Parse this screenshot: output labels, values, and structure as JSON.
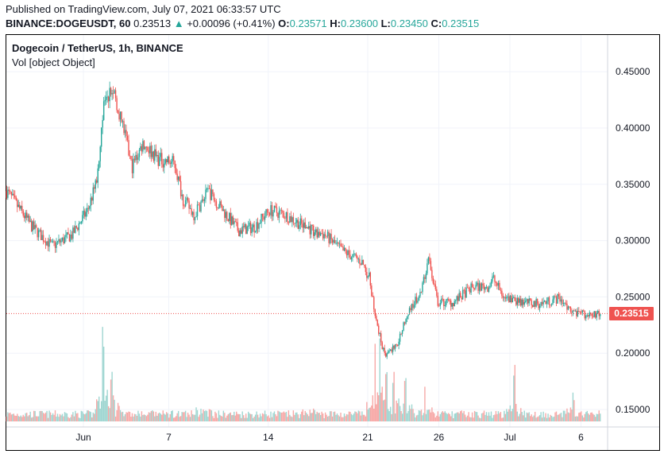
{
  "header": {
    "published": "Published on TradingView.com, July 07, 2021 06:33:57 UTC",
    "symbol": "BINANCE:DOGEUSDT, 60",
    "price": "0.23513",
    "arrow": "▲",
    "change": "+0.00096 (+0.41%)",
    "o_label": "O:",
    "o": "0.23571",
    "h_label": "H:",
    "h": "0.23600",
    "l_label": "L:",
    "l": "0.23450",
    "c_label": "C:",
    "c": "0.23515"
  },
  "legend": {
    "title": "Dogecoin / TetherUS, 1h, BINANCE",
    "volume": "Vol [object Object]"
  },
  "last_price_label": "0.23515",
  "colors": {
    "up": "#26a69a",
    "down": "#ef5350",
    "grid": "#f0f3fa",
    "up_vol": "#9fd6d1",
    "down_vol": "#f7a9a7"
  },
  "chart_data": {
    "type": "candlestick",
    "title": "Dogecoin / TetherUS, 1h, BINANCE",
    "x_unit": "days since Jun 1, 2021",
    "xlim": [
      -5.42,
      36.87
    ],
    "ylim": [
      0.1375,
      0.475
    ],
    "y_ticks": [
      "0.45000",
      "0.40000",
      "0.35000",
      "0.30000",
      "0.25000",
      "0.20000",
      "0.15000"
    ],
    "y_tick_values": [
      0.45,
      0.4,
      0.35,
      0.3,
      0.25,
      0.2,
      0.15
    ],
    "x_ticks": [
      {
        "label": "Jun",
        "day": 0
      },
      {
        "label": "7",
        "day": 6
      },
      {
        "label": "14",
        "day": 13
      },
      {
        "label": "21",
        "day": 20
      },
      {
        "label": "26",
        "day": 25
      },
      {
        "label": "Jul",
        "day": 30
      },
      {
        "label": "6",
        "day": 35
      }
    ],
    "last_price": 0.23515,
    "price_path": [
      [
        -5.4,
        0.344
      ],
      [
        -3.6,
        0.312
      ],
      [
        -2.2,
        0.295
      ],
      [
        -0.8,
        0.305
      ],
      [
        0.3,
        0.327
      ],
      [
        0.9,
        0.351
      ],
      [
        1.5,
        0.429
      ],
      [
        2.2,
        0.429
      ],
      [
        2.8,
        0.401
      ],
      [
        3.4,
        0.365
      ],
      [
        4.2,
        0.387
      ],
      [
        5.3,
        0.372
      ],
      [
        6.4,
        0.369
      ],
      [
        7.0,
        0.337
      ],
      [
        7.8,
        0.323
      ],
      [
        8.8,
        0.344
      ],
      [
        9.8,
        0.327
      ],
      [
        10.9,
        0.309
      ],
      [
        12.0,
        0.312
      ],
      [
        13.1,
        0.327
      ],
      [
        14.2,
        0.323
      ],
      [
        15.6,
        0.312
      ],
      [
        17.0,
        0.305
      ],
      [
        18.2,
        0.291
      ],
      [
        19.6,
        0.281
      ],
      [
        20.1,
        0.267
      ],
      [
        20.7,
        0.224
      ],
      [
        21.2,
        0.196
      ],
      [
        22.1,
        0.21
      ],
      [
        22.9,
        0.238
      ],
      [
        23.7,
        0.252
      ],
      [
        24.3,
        0.284
      ],
      [
        24.9,
        0.245
      ],
      [
        26.0,
        0.245
      ],
      [
        27.4,
        0.259
      ],
      [
        28.5,
        0.259
      ],
      [
        28.8,
        0.267
      ],
      [
        29.6,
        0.249
      ],
      [
        30.7,
        0.245
      ],
      [
        32.1,
        0.244
      ],
      [
        33.5,
        0.249
      ],
      [
        34.5,
        0.235
      ],
      [
        35.5,
        0.235
      ],
      [
        36.4,
        0.235
      ]
    ],
    "volume_spikes": [
      [
        1.4,
        1.0
      ],
      [
        1.6,
        0.9
      ],
      [
        2.0,
        0.7
      ],
      [
        20.5,
        0.8
      ],
      [
        20.9,
        0.9
      ],
      [
        21.3,
        0.75
      ],
      [
        21.8,
        0.6
      ],
      [
        22.6,
        0.5
      ],
      [
        24.0,
        0.4
      ],
      [
        30.3,
        0.75
      ],
      [
        34.5,
        0.35
      ],
      [
        8.5,
        0.35
      ],
      [
        16.0,
        0.3
      ]
    ]
  }
}
